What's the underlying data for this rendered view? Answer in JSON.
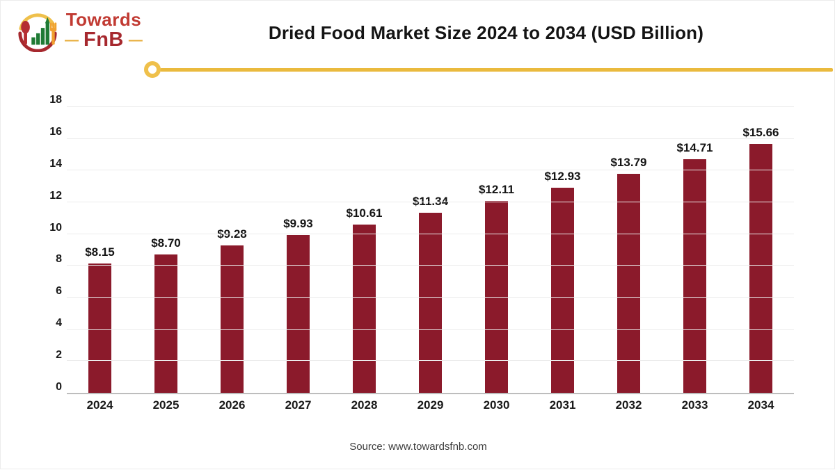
{
  "header": {
    "logo_line1": "Towards",
    "logo_line2": "FnB",
    "logo_dash": "—",
    "title": "Dried Food Market Size 2024 to 2034 (USD Billion)"
  },
  "chart_data": {
    "type": "bar",
    "title": "Dried Food Market Size 2024 to 2034 (USD Billion)",
    "categories": [
      "2024",
      "2025",
      "2026",
      "2027",
      "2028",
      "2029",
      "2030",
      "2031",
      "2032",
      "2033",
      "2034"
    ],
    "values": [
      8.15,
      8.7,
      9.28,
      9.93,
      10.61,
      11.34,
      12.11,
      12.93,
      13.79,
      14.71,
      15.66
    ],
    "value_labels": [
      "$8.15",
      "$8.70",
      "$9.28",
      "$9.93",
      "$10.61",
      "$11.34",
      "$12.11",
      "$12.93",
      "$13.79",
      "$14.71",
      "$15.66"
    ],
    "xlabel": "",
    "ylabel": "",
    "ylim": [
      0,
      18
    ],
    "ytick_step": 2,
    "grid": true,
    "legend": "none",
    "bar_color": "#8b1a2b"
  },
  "footer": {
    "source": "Source: www.towardsfnb.com"
  },
  "colors": {
    "bar_maroon": "#8b1a2b",
    "accent_gold": "#eaba3e",
    "logo_red": "#a6282e",
    "gridline_gray": "#ececec",
    "axis_gray": "#bdbdbd"
  }
}
